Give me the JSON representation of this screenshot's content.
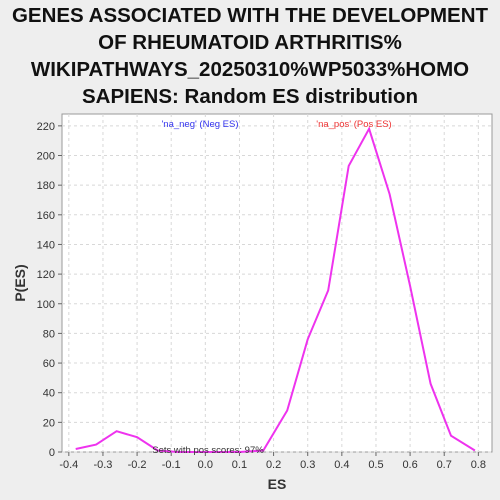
{
  "title_lines": [
    "GENES ASSOCIATED WITH THE DEVELOPMENT",
    "OF RHEUMATOID ARTHRITIS%",
    "WIKIPATHWAYS_20250310%WP5033%HOMO",
    "SAPIENS: Random ES distribution"
  ],
  "chart_data": {
    "type": "line",
    "title": "GENES ASSOCIATED WITH THE DEVELOPMENT OF RHEUMATOID ARTHRITIS% WIKIPATHWAYS_20250310%WP5033%HOMO SAPIENS: Random ES distribution",
    "xlabel": "ES",
    "ylabel": "P(ES)",
    "xlim": [
      -0.42,
      0.84
    ],
    "ylim": [
      0,
      228
    ],
    "x_ticks": [
      -0.4,
      -0.3,
      -0.2,
      -0.1,
      0.0,
      0.1,
      0.2,
      0.3,
      0.4,
      0.5,
      0.6,
      0.7,
      0.8
    ],
    "x_tick_labels": [
      "-0.4",
      "-0.3",
      "-0.2",
      "-0.1",
      "0.0",
      "0.1",
      "0.2",
      "0.3",
      "0.4",
      "0.5",
      "0.6",
      "0.7",
      "0.8"
    ],
    "y_ticks": [
      0,
      20,
      40,
      60,
      80,
      100,
      120,
      140,
      160,
      180,
      200,
      220
    ],
    "y_tick_labels": [
      "0",
      "20",
      "40",
      "60",
      "80",
      "100",
      "120",
      "140",
      "160",
      "180",
      "200",
      "220"
    ],
    "grid": true,
    "series": [
      {
        "color": "#ee33ee",
        "x": [
          -0.38,
          -0.32,
          -0.26,
          -0.2,
          -0.14,
          -0.08,
          -0.02,
          0.04,
          0.1,
          0.17,
          0.24,
          0.3,
          0.36,
          0.42,
          0.48,
          0.54,
          0.6,
          0.66,
          0.72,
          0.79
        ],
        "y": [
          2,
          5,
          14,
          10,
          1,
          0,
          0,
          0,
          0,
          1,
          28,
          76,
          109,
          193,
          218,
          174,
          112,
          46,
          11,
          1
        ]
      }
    ],
    "annotations": [
      {
        "text": "'na_neg' (Neg ES)",
        "color": "#3333ee"
      },
      {
        "text": "'na_pos' (Pos ES)",
        "color": "#ee3333"
      },
      {
        "text": "Sets with pos scores: 97%",
        "color": "#333333"
      }
    ]
  },
  "colors": {
    "background": "#eeeeee",
    "plot_background": "#ffffff",
    "grid": "#d8d8d8",
    "line": "#ee33ee",
    "neg_label": "#3333ee",
    "pos_label": "#ee3333"
  }
}
